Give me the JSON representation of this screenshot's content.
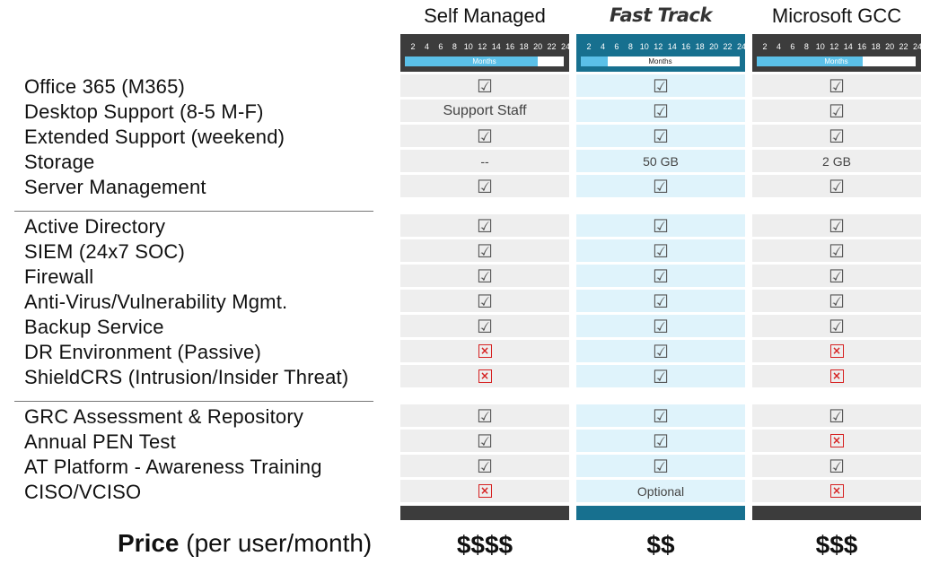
{
  "columns": [
    {
      "name": "Self Managed",
      "fill_months": 20,
      "bar_label": "Months",
      "header_bg": "#3c3c3c",
      "fill_color": "#5bc0e8",
      "cell_bg": "#eeeeee",
      "footer": "#3c3c3c",
      "price": "$$$$"
    },
    {
      "name": "Fast Track",
      "fill_months": 4,
      "bar_label": "Months",
      "header_bg": "#17708f",
      "fill_color": "#5bc0e8",
      "cell_bg": "#dff3fb",
      "footer": "#17708f",
      "price": "$$"
    },
    {
      "name": "Microsoft GCC",
      "fill_months": 16,
      "bar_label": "Months",
      "header_bg": "#3c3c3c",
      "fill_color": "#5bc0e8",
      "cell_bg": "#eeeeee",
      "footer": "#3c3c3c",
      "price": "$$$"
    }
  ],
  "ticks": [
    "2",
    "4",
    "6",
    "8",
    "10",
    "12",
    "14",
    "16",
    "18",
    "20",
    "22",
    "24"
  ],
  "groups": [
    {
      "rows": [
        {
          "label": "Office 365 (M365)",
          "values": [
            "check",
            "check",
            "check"
          ]
        },
        {
          "label": "Desktop Support (8-5 M-F)",
          "values": [
            "Support Staff",
            "check",
            "check"
          ]
        },
        {
          "label": "Extended Support (weekend)",
          "values": [
            "check",
            "check",
            "check"
          ]
        },
        {
          "label": "Storage",
          "values": [
            "--",
            "50 GB",
            "2 GB"
          ]
        },
        {
          "label": "Server Management",
          "values": [
            "check",
            "check",
            "check"
          ]
        }
      ]
    },
    {
      "rows": [
        {
          "label": "Active Directory",
          "values": [
            "check",
            "check",
            "check"
          ]
        },
        {
          "label": "SIEM (24x7 SOC)",
          "values": [
            "check",
            "check",
            "check"
          ]
        },
        {
          "label": "Firewall",
          "values": [
            "check",
            "check",
            "check"
          ]
        },
        {
          "label": "Anti-Virus/Vulnerability Mgmt.",
          "values": [
            "check",
            "check",
            "check"
          ]
        },
        {
          "label": "Backup Service",
          "values": [
            "check",
            "check",
            "check"
          ]
        },
        {
          "label": "DR Environment (Passive)",
          "values": [
            "cross",
            "check",
            "cross"
          ]
        },
        {
          "label": "ShieldCRS (Intrusion/Insider Threat)",
          "values": [
            "cross",
            "check",
            "cross"
          ]
        }
      ]
    },
    {
      "rows": [
        {
          "label": "GRC Assessment & Repository",
          "values": [
            "check",
            "check",
            "check"
          ]
        },
        {
          "label": "Annual PEN Test",
          "values": [
            "check",
            "check",
            "cross"
          ]
        },
        {
          "label": "AT Platform - Awareness Training",
          "values": [
            "check",
            "check",
            "check"
          ]
        },
        {
          "label": "CISO/VCISO",
          "values": [
            "cross",
            "Optional",
            "cross"
          ]
        }
      ]
    }
  ],
  "price_label": {
    "bold": "Price",
    "rest": " (per user/month)"
  },
  "icons": {
    "check": "checkbox-checked-icon",
    "cross": "red-x-icon"
  }
}
